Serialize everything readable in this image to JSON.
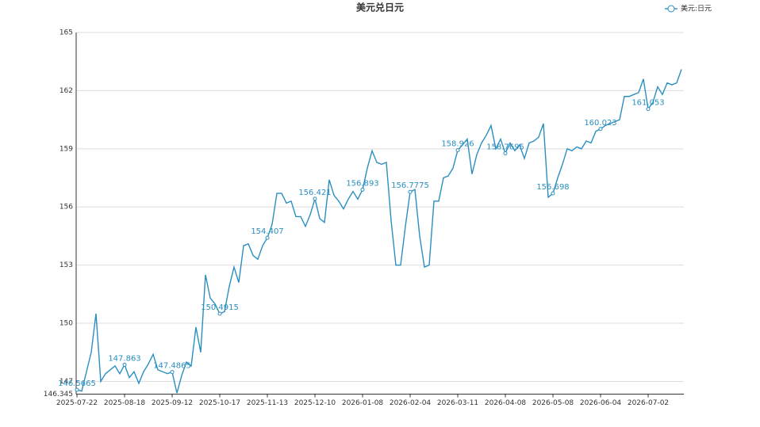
{
  "chart_data": {
    "type": "line",
    "title": "美元兑日元",
    "categories": [
      "2025-07-22",
      null,
      null,
      null,
      null,
      null,
      null,
      null,
      null,
      null,
      "2025-08-18",
      null,
      null,
      null,
      null,
      null,
      null,
      null,
      null,
      null,
      "2025-09-12",
      null,
      null,
      null,
      null,
      null,
      null,
      null,
      null,
      null,
      "2025-10-17",
      null,
      null,
      null,
      null,
      null,
      null,
      null,
      null,
      null,
      "2025-11-13",
      null,
      null,
      null,
      null,
      null,
      null,
      null,
      null,
      null,
      "2025-12-10",
      null,
      null,
      null,
      null,
      null,
      null,
      null,
      null,
      null,
      "2026-01-08",
      null,
      null,
      null,
      null,
      null,
      null,
      null,
      null,
      null,
      "2026-02-04",
      null,
      null,
      null,
      null,
      null,
      null,
      null,
      null,
      null,
      "2026-03-11",
      null,
      null,
      null,
      null,
      null,
      null,
      null,
      null,
      null,
      "2026-04-08",
      null,
      null,
      null,
      null,
      null,
      null,
      null,
      null,
      null,
      "2026-05-08",
      null,
      null,
      null,
      null,
      null,
      null,
      null,
      null,
      null,
      "2026-06-04",
      null,
      null,
      null,
      null,
      null,
      null,
      null,
      null,
      null,
      "2026-07-02",
      null,
      null,
      null,
      null,
      null,
      null,
      null
    ],
    "series": [
      {
        "name": "美元:日元",
        "color": "#2a8fc0",
        "values": [
          146.5665,
          146.5,
          147.5,
          148.5,
          150.5,
          147.0,
          147.4,
          147.6,
          147.8,
          147.4,
          147.863,
          147.2,
          147.5,
          146.9,
          147.5,
          147.9,
          148.4,
          147.6,
          147.5,
          147.4,
          147.4865,
          146.4,
          147.3,
          148.0,
          147.8,
          149.8,
          148.5,
          152.5,
          151.3,
          151.0,
          150.4915,
          150.6,
          151.9,
          152.9,
          152.1,
          154.0,
          154.1,
          153.5,
          153.3,
          154.0,
          154.407,
          155.1,
          156.7,
          156.7,
          156.2,
          156.3,
          155.5,
          155.5,
          155.0,
          155.6,
          156.421,
          155.4,
          155.2,
          157.4,
          156.6,
          156.3,
          155.9,
          156.4,
          156.8,
          156.4,
          156.893,
          158.0,
          158.9,
          158.3,
          158.2,
          158.3,
          155.3,
          153.0,
          153.0,
          155.0,
          156.7775,
          156.9,
          154.5,
          152.9,
          153.0,
          156.3,
          156.3,
          157.5,
          157.6,
          158.0,
          158.926,
          159.2,
          159.5,
          157.7,
          158.7,
          159.3,
          159.7,
          160.2,
          159.0,
          159.5,
          158.7695,
          159.3,
          158.9,
          159.2,
          158.5,
          159.3,
          159.4,
          159.6,
          160.3,
          156.5,
          156.698,
          157.5,
          158.2,
          159.0,
          158.9,
          159.1,
          159.0,
          159.4,
          159.3,
          159.9,
          160.023,
          160.2,
          160.3,
          160.4,
          160.5,
          161.7,
          161.7,
          161.8,
          161.9,
          162.6,
          161.053,
          161.4,
          162.2,
          161.8,
          162.4,
          162.3,
          162.4,
          163.1
        ]
      }
    ],
    "ylim": [
      146.345,
      165
    ],
    "yticks": [
      146.345,
      147,
      150,
      153,
      156,
      159,
      162,
      165
    ],
    "grid": true,
    "legend": "top-right"
  }
}
